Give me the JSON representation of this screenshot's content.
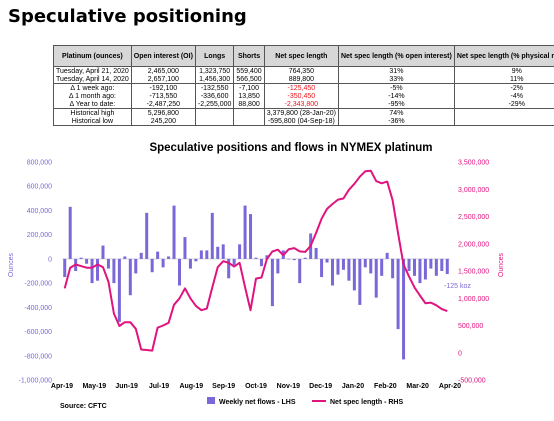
{
  "page": {
    "title": "Speculative positioning"
  },
  "table": {
    "headers": [
      "Platinum (ounces)",
      "Open interest (OI)",
      "Longs",
      "Shorts",
      "Net spec length",
      "Net spec length (% open interest)",
      "Net spec length (% physical market)"
    ],
    "rows": [
      {
        "cells": [
          "Tuesday, April 21, 2020",
          "2,465,000",
          "1,323,750",
          "559,400",
          "764,350",
          "31%",
          "9%"
        ],
        "red": false
      },
      {
        "cells": [
          "Tuesday, April 14, 2020",
          "2,657,100",
          "1,456,300",
          "566,500",
          "889,800",
          "33%",
          "11%"
        ],
        "red": false
      },
      {
        "cells": [
          "Δ 1 week ago:",
          "-192,100",
          "-132,550",
          "-7,100",
          "-125,450",
          "-5%",
          "-2%"
        ],
        "red": true
      },
      {
        "cells": [
          "Δ 1 month ago:",
          "-713,550",
          "-336,600",
          "13,850",
          "-350,450",
          "-14%",
          "-4%"
        ],
        "red": true
      },
      {
        "cells": [
          "Δ Year to date:",
          "-2,487,250",
          "-2,255,000",
          "88,800",
          "-2,343,800",
          "-95%",
          "-29%"
        ],
        "red": true
      },
      {
        "cells": [
          "Historical high",
          "5,296,800",
          "",
          "",
          "3,379,800 (28-Jan-20)",
          "74%",
          ""
        ],
        "red": false
      },
      {
        "cells": [
          "Historical low",
          "245,200",
          "",
          "",
          "-595,800 (04-Sep-18)",
          "-36%",
          ""
        ],
        "red": false
      }
    ]
  },
  "chart_data": {
    "type": "bar+line",
    "title": "Speculative positions and flows in NYMEX platinum",
    "xlabel": "",
    "ylabel_left": "Ounces",
    "ylabel_right": "Ounces",
    "x_ticks": [
      "Apr-19",
      "May-19",
      "Jun-19",
      "Jul-19",
      "Aug-19",
      "Sep-19",
      "Oct-19",
      "Nov-19",
      "Dec-19",
      "Jan-20",
      "Feb-20",
      "Mar-20",
      "Apr-20"
    ],
    "ylim_left": [
      -1000000,
      800000
    ],
    "yticks_left": [
      "800,000",
      "600,000",
      "400,000",
      "200,000",
      "0",
      "-200,000",
      "-400,000",
      "-600,000",
      "-800,000",
      "-1,000,000"
    ],
    "ylim_right": [
      -500000,
      3500000
    ],
    "yticks_right": [
      "3,500,000",
      "3,000,000",
      "2,500,000",
      "2,000,000",
      "1,500,000",
      "1,000,000",
      "500,000",
      "0",
      "-500,000"
    ],
    "series": [
      {
        "name": "Weekly net flows - LHS",
        "axis": "left",
        "color": "#7b68d8",
        "values": [
          -150000,
          430000,
          -100000,
          10000,
          -40000,
          -200000,
          -180000,
          110000,
          -80000,
          -200000,
          -520000,
          20000,
          -300000,
          -120000,
          50000,
          380000,
          -110000,
          60000,
          -70000,
          20000,
          440000,
          -220000,
          180000,
          -80000,
          -20000,
          70000,
          70000,
          380000,
          100000,
          120000,
          -160000,
          -50000,
          120000,
          440000,
          370000,
          10000,
          -60000,
          30000,
          -390000,
          -120000,
          70000,
          0,
          -10000,
          -200000,
          10000,
          210000,
          90000,
          -150000,
          -30000,
          -220000,
          -130000,
          -90000,
          -180000,
          -260000,
          -380000,
          -70000,
          -120000,
          -320000,
          -140000,
          50000,
          -160000,
          -580000,
          -830000,
          -100000,
          -140000,
          -200000,
          -170000,
          -80000,
          -140000,
          -100000,
          -125000
        ]
      },
      {
        "name": "Net spec length - RHS",
        "axis": "right",
        "color": "#e0137f",
        "values": [
          1180000,
          1560000,
          1620000,
          1590000,
          1560000,
          1560000,
          1620000,
          1570000,
          1300000,
          720000,
          490000,
          560000,
          560000,
          440000,
          60000,
          50000,
          40000,
          460000,
          500000,
          550000,
          880000,
          1000000,
          1180000,
          1000000,
          860000,
          780000,
          810000,
          1200000,
          1570000,
          1680000,
          1650000,
          1580000,
          1650000,
          1200000,
          780000,
          1360000,
          1380000,
          1720000,
          1860000,
          1890000,
          1790000,
          1900000,
          1920000,
          1860000,
          1850000,
          1960000,
          2200000,
          2460000,
          2640000,
          2730000,
          2810000,
          2830000,
          2990000,
          3100000,
          3230000,
          3330000,
          3340000,
          3150000,
          3110000,
          3140000,
          2800000,
          2190000,
          1620000,
          1400000,
          1200000,
          1050000,
          910000,
          920000,
          870000,
          800000,
          764350
        ]
      }
    ],
    "annotations": [
      "-125 koz"
    ],
    "source": "Source: CFTC",
    "legend_position": "bottom"
  }
}
